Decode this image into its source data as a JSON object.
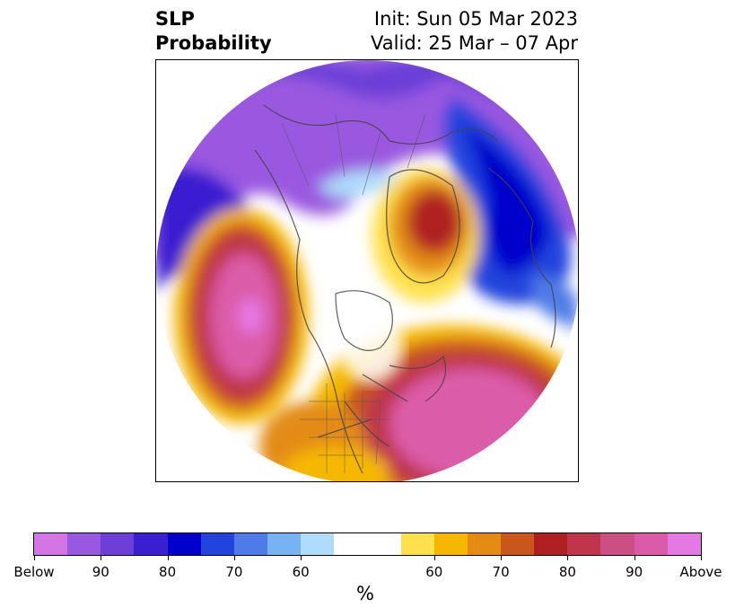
{
  "title": {
    "variable_line1": "SLP",
    "variable_line2": "Probability",
    "init": "Init: Sun 05 Mar 2023",
    "valid": "Valid: 25 Mar – 07 Apr"
  },
  "colorbar": {
    "colors": [
      "#d475e6",
      "#9a58e0",
      "#6b3fd8",
      "#3a1fd0",
      "#0000cc",
      "#2244dd",
      "#4f7be8",
      "#77b3f2",
      "#afdcfa",
      "#ffffff",
      "#ffe14d",
      "#f5b700",
      "#e38b12",
      "#c9571b",
      "#b02020",
      "#c03549",
      "#cc4f83",
      "#db5ba9",
      "#e479e4"
    ],
    "tick_labels": [
      "Below",
      "90",
      "80",
      "70",
      "60",
      "60",
      "70",
      "80",
      "90",
      "Above"
    ],
    "unit": "%"
  }
}
